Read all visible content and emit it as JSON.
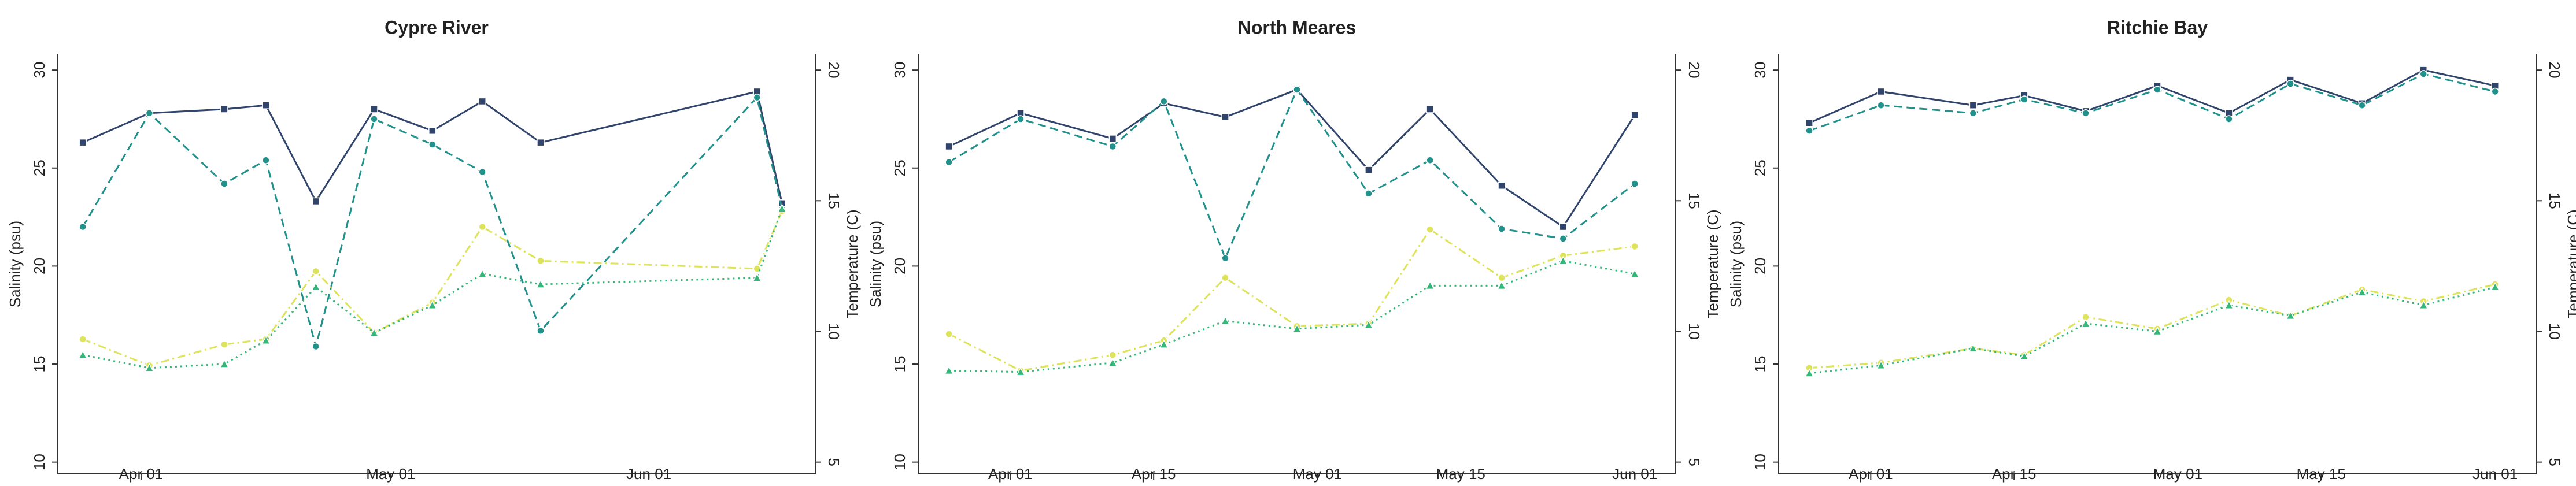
{
  "chart_data": [
    {
      "type": "line",
      "title": "Cypre River",
      "y_label": "Salinity (psu)",
      "y2_label": "Temperature (C)",
      "x": [
        "Mar 25",
        "Apr 02",
        "Apr 11",
        "Apr 16",
        "Apr 22",
        "Apr 29",
        "May 06",
        "May 12",
        "May 19",
        "Jun 14",
        "Jun 17"
      ],
      "xlim": [
        "Mar 22",
        "Jun 21"
      ],
      "xticks": [
        "Apr 01",
        "May 01",
        "Jun 01"
      ],
      "ylim": [
        9.4,
        30.8
      ],
      "yticks": [
        10,
        15,
        20,
        25,
        30
      ],
      "y2lim": [
        4.55,
        20.6
      ],
      "y2ticks": [
        5,
        10,
        15,
        20
      ],
      "grid": false,
      "series": [
        {
          "color": "#31446b",
          "linestyle": "solid",
          "marker": "square",
          "axis": "y",
          "values": [
            26.3,
            27.8,
            28.0,
            28.2,
            23.3,
            28.0,
            26.9,
            28.4,
            26.3,
            28.9,
            23.2
          ]
        },
        {
          "color": "#21918c",
          "linestyle": "dashed",
          "marker": "circle",
          "axis": "y",
          "values": [
            22.0,
            27.8,
            24.2,
            25.4,
            15.9,
            27.5,
            26.2,
            24.8,
            16.7,
            28.6,
            22.9
          ]
        },
        {
          "color": "#dde35a",
          "linestyle": "dashdot",
          "marker": "circle",
          "axis": "y2",
          "values": [
            9.7,
            8.7,
            9.5,
            9.7,
            12.3,
            9.95,
            11.1,
            14.0,
            12.7,
            12.4,
            14.6
          ]
        },
        {
          "color": "#35b779",
          "linestyle": "dotted",
          "marker": "triangle",
          "axis": "y2",
          "values": [
            9.1,
            8.6,
            8.75,
            9.65,
            11.7,
            9.95,
            11.0,
            12.2,
            11.8,
            12.05,
            14.7
          ]
        }
      ]
    },
    {
      "type": "line",
      "title": "North Meares",
      "y_label": "Salinity (psu)",
      "y2_label": "Temperature (C)",
      "x": [
        "Mar 26",
        "Apr 02",
        "Apr 11",
        "Apr 16",
        "Apr 22",
        "Apr 29",
        "May 06",
        "May 12",
        "May 19",
        "May 25",
        "Jun 01"
      ],
      "xlim": [
        "Mar 23",
        "Jun 05"
      ],
      "xticks": [
        "Apr 01",
        "Apr 15",
        "May 01",
        "May 15",
        "Jun 01"
      ],
      "ylim": [
        9.4,
        30.8
      ],
      "yticks": [
        10,
        15,
        20,
        25,
        30
      ],
      "y2lim": [
        4.55,
        20.6
      ],
      "y2ticks": [
        5,
        10,
        15,
        20
      ],
      "grid": false,
      "series": [
        {
          "color": "#31446b",
          "linestyle": "solid",
          "marker": "square",
          "axis": "y",
          "values": [
            26.1,
            27.8,
            26.5,
            28.3,
            27.6,
            29.0,
            24.9,
            28.0,
            24.1,
            22.0,
            27.7
          ]
        },
        {
          "color": "#21918c",
          "linestyle": "dashed",
          "marker": "circle",
          "axis": "y",
          "values": [
            25.3,
            27.5,
            26.1,
            28.4,
            20.4,
            29.0,
            23.7,
            25.4,
            21.9,
            21.4,
            24.2
          ]
        },
        {
          "color": "#dde35a",
          "linestyle": "dashdot",
          "marker": "circle",
          "axis": "y2",
          "values": [
            9.9,
            8.5,
            9.1,
            9.65,
            12.05,
            10.2,
            10.3,
            13.9,
            12.05,
            12.9,
            13.25
          ]
        },
        {
          "color": "#35b779",
          "linestyle": "dotted",
          "marker": "triangle",
          "axis": "y2",
          "values": [
            8.5,
            8.45,
            8.8,
            9.5,
            10.4,
            10.1,
            10.25,
            11.75,
            11.75,
            12.7,
            12.2
          ]
        }
      ]
    },
    {
      "type": "line",
      "title": "Ritchie Bay",
      "y_label": "Salinity (psu)",
      "y2_label": "Temperature (C)",
      "x": [
        "Mar 26",
        "Apr 02",
        "Apr 11",
        "Apr 16",
        "Apr 22",
        "Apr 29",
        "May 06",
        "May 12",
        "May 19",
        "May 25",
        "Jun 01"
      ],
      "xlim": [
        "Mar 23",
        "Jun 05"
      ],
      "xticks": [
        "Apr 01",
        "Apr 15",
        "May 01",
        "May 15",
        "Jun 01"
      ],
      "ylim": [
        9.4,
        30.8
      ],
      "yticks": [
        10,
        15,
        20,
        25,
        30
      ],
      "y2lim": [
        4.55,
        20.6
      ],
      "y2ticks": [
        5,
        10,
        15,
        20
      ],
      "grid": false,
      "series": [
        {
          "color": "#31446b",
          "linestyle": "solid",
          "marker": "square",
          "axis": "y",
          "values": [
            27.3,
            28.9,
            28.2,
            28.7,
            27.9,
            29.2,
            27.8,
            29.5,
            28.3,
            30.0,
            29.2
          ]
        },
        {
          "color": "#21918c",
          "linestyle": "dashed",
          "marker": "circle",
          "axis": "y",
          "values": [
            26.9,
            28.2,
            27.8,
            28.5,
            27.8,
            29.0,
            27.5,
            29.3,
            28.2,
            29.8,
            28.9
          ]
        },
        {
          "color": "#dde35a",
          "linestyle": "dashdot",
          "marker": "circle",
          "axis": "y2",
          "values": [
            8.6,
            8.8,
            9.35,
            9.1,
            10.55,
            10.1,
            11.2,
            10.6,
            11.6,
            11.15,
            11.8
          ]
        },
        {
          "color": "#35b779",
          "linestyle": "dotted",
          "marker": "triangle",
          "axis": "y2",
          "values": [
            8.4,
            8.7,
            9.35,
            9.05,
            10.3,
            10.0,
            11.0,
            10.6,
            11.5,
            11.0,
            11.7
          ]
        }
      ]
    }
  ]
}
